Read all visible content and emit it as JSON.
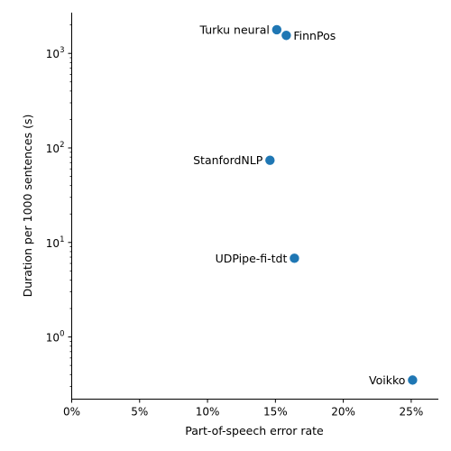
{
  "chart_data": {
    "type": "scatter",
    "xlabel": "Part-of-speech error rate",
    "ylabel": "Duration per 1000 sentences (s)",
    "x_scale": "linear",
    "y_scale": "log",
    "xlim": [
      0,
      0.27
    ],
    "ylim": [
      0.22,
      2700
    ],
    "x_ticks": [
      {
        "value": 0.0,
        "label": "0%"
      },
      {
        "value": 0.05,
        "label": "5%"
      },
      {
        "value": 0.1,
        "label": "10%"
      },
      {
        "value": 0.15,
        "label": "15%"
      },
      {
        "value": 0.2,
        "label": "20%"
      },
      {
        "value": 0.25,
        "label": "25%"
      }
    ],
    "y_ticks": [
      {
        "value": 1,
        "base": "10",
        "exp": "0"
      },
      {
        "value": 10,
        "base": "10",
        "exp": "1"
      },
      {
        "value": 100,
        "base": "10",
        "exp": "2"
      },
      {
        "value": 1000,
        "base": "10",
        "exp": "3"
      }
    ],
    "grid": false,
    "point_color": "#1f77b4",
    "points": [
      {
        "label": "Turku neural",
        "x": 0.151,
        "y": 1780,
        "label_side": "left"
      },
      {
        "label": "FinnPos",
        "x": 0.158,
        "y": 1550,
        "label_side": "right"
      },
      {
        "label": "StanfordNLP",
        "x": 0.146,
        "y": 74,
        "label_side": "left"
      },
      {
        "label": "UDPipe-fi-tdt",
        "x": 0.164,
        "y": 6.8,
        "label_side": "left"
      },
      {
        "label": "Voikko",
        "x": 0.251,
        "y": 0.35,
        "label_side": "left"
      }
    ]
  }
}
